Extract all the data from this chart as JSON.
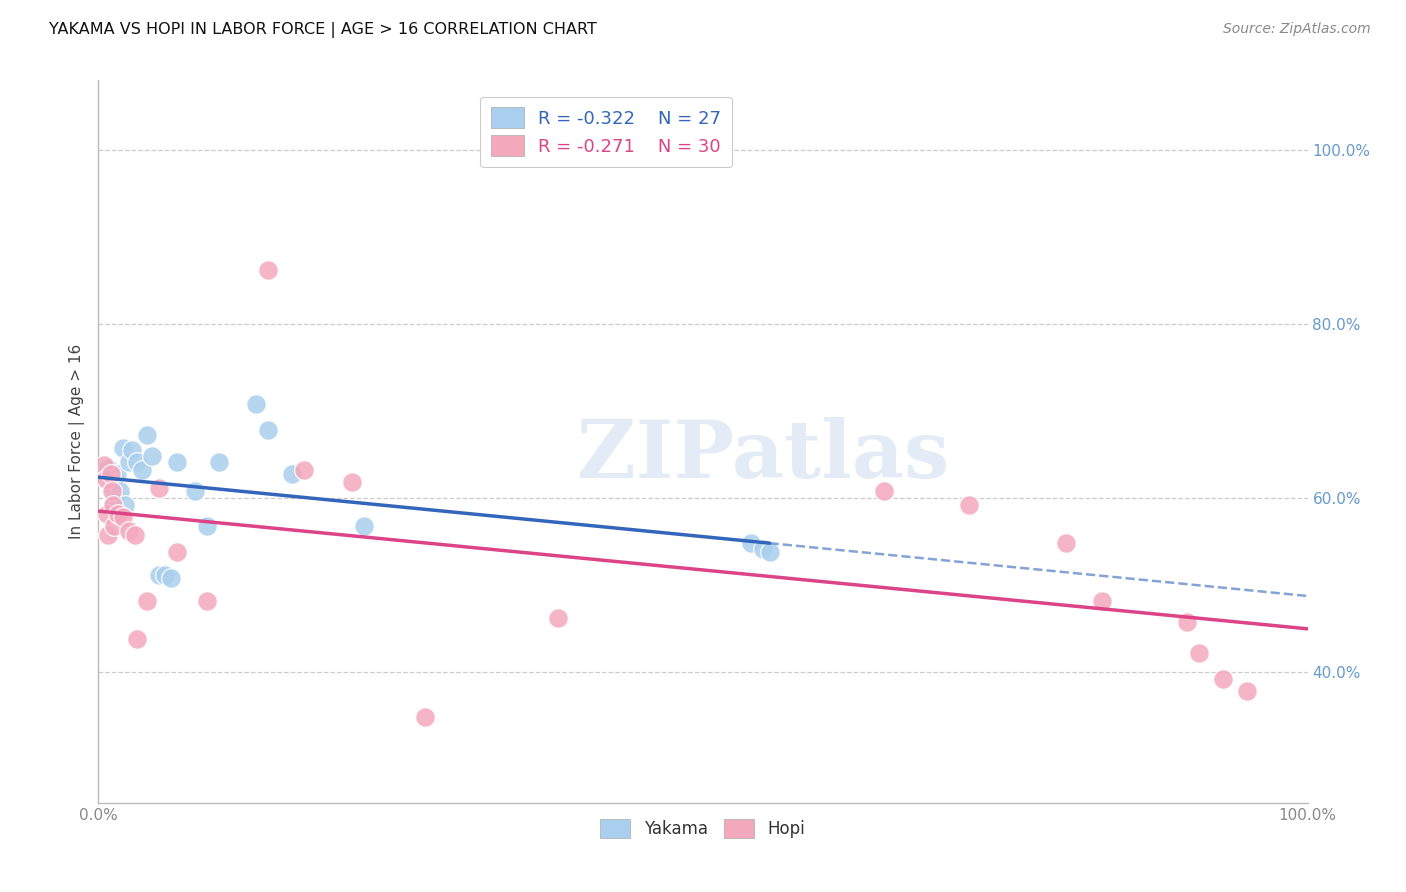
{
  "title": "YAKAMA VS HOPI IN LABOR FORCE | AGE > 16 CORRELATION CHART",
  "source": "Source: ZipAtlas.com",
  "ylabel": "In Labor Force | Age > 16",
  "xlim": [
    0.0,
    1.0
  ],
  "ylim": [
    0.25,
    1.08
  ],
  "xticks": [
    0.0,
    0.2,
    0.4,
    0.6,
    0.8,
    1.0
  ],
  "xtick_labels": [
    "0.0%",
    "",
    "",
    "",
    "",
    "100.0%"
  ],
  "ytick_labels_right": [
    "100.0%",
    "80.0%",
    "60.0%",
    "40.0%"
  ],
  "yticks_right": [
    1.0,
    0.8,
    0.6,
    0.4
  ],
  "background_color": "#ffffff",
  "grid_color": "#cccccc",
  "watermark": "ZIPatlas",
  "yakama_color": "#aacfee",
  "hopi_color": "#f4a8bc",
  "yakama_line_color": "#3366bb",
  "hopi_line_color": "#dd4488",
  "yakama_R": "-0.322",
  "yakama_N": "27",
  "hopi_R": "-0.271",
  "hopi_N": "30",
  "yakama_points": [
    [
      0.008,
      0.635
    ],
    [
      0.01,
      0.615
    ],
    [
      0.012,
      0.595
    ],
    [
      0.015,
      0.628
    ],
    [
      0.018,
      0.608
    ],
    [
      0.02,
      0.658
    ],
    [
      0.022,
      0.592
    ],
    [
      0.025,
      0.642
    ],
    [
      0.028,
      0.655
    ],
    [
      0.032,
      0.642
    ],
    [
      0.036,
      0.632
    ],
    [
      0.04,
      0.672
    ],
    [
      0.044,
      0.648
    ],
    [
      0.05,
      0.512
    ],
    [
      0.055,
      0.512
    ],
    [
      0.06,
      0.508
    ],
    [
      0.065,
      0.642
    ],
    [
      0.08,
      0.608
    ],
    [
      0.09,
      0.568
    ],
    [
      0.1,
      0.642
    ],
    [
      0.13,
      0.708
    ],
    [
      0.14,
      0.678
    ],
    [
      0.16,
      0.628
    ],
    [
      0.22,
      0.568
    ],
    [
      0.54,
      0.548
    ],
    [
      0.55,
      0.542
    ],
    [
      0.555,
      0.538
    ]
  ],
  "hopi_points": [
    [
      0.005,
      0.638
    ],
    [
      0.006,
      0.622
    ],
    [
      0.007,
      0.582
    ],
    [
      0.008,
      0.558
    ],
    [
      0.01,
      0.628
    ],
    [
      0.011,
      0.608
    ],
    [
      0.012,
      0.592
    ],
    [
      0.013,
      0.568
    ],
    [
      0.016,
      0.582
    ],
    [
      0.02,
      0.578
    ],
    [
      0.025,
      0.562
    ],
    [
      0.03,
      0.558
    ],
    [
      0.032,
      0.438
    ],
    [
      0.04,
      0.482
    ],
    [
      0.05,
      0.612
    ],
    [
      0.065,
      0.538
    ],
    [
      0.09,
      0.482
    ],
    [
      0.14,
      0.862
    ],
    [
      0.17,
      0.632
    ],
    [
      0.21,
      0.618
    ],
    [
      0.27,
      0.348
    ],
    [
      0.38,
      0.462
    ],
    [
      0.65,
      0.608
    ],
    [
      0.72,
      0.592
    ],
    [
      0.8,
      0.548
    ],
    [
      0.83,
      0.482
    ],
    [
      0.9,
      0.458
    ],
    [
      0.91,
      0.422
    ],
    [
      0.93,
      0.392
    ],
    [
      0.95,
      0.378
    ]
  ],
  "legend_border_color": "#cccccc",
  "legend_yakama_text_color": "#3366bb",
  "legend_hopi_text_color": "#dd4488",
  "legend_n_color": "#3366bb"
}
